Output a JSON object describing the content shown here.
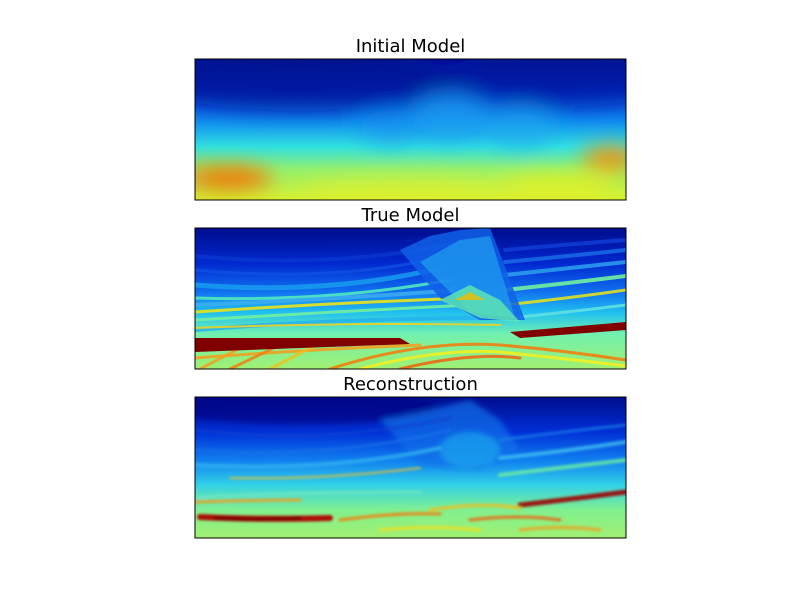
{
  "chart_data": [
    {
      "type": "heatmap",
      "title": "Initial Model",
      "axes_visible": false,
      "colormap": "jet",
      "description_of_field": "smooth velocity field increasing with depth"
    },
    {
      "type": "heatmap",
      "title": "True Model",
      "axes_visible": false,
      "colormap": "jet",
      "description_of_field": "layered velocity model with folded and faulted strata"
    },
    {
      "type": "heatmap",
      "title": "Reconstruction",
      "axes_visible": false,
      "colormap": "jet",
      "description_of_field": "inverted velocity model approximating the layered structure"
    }
  ]
}
